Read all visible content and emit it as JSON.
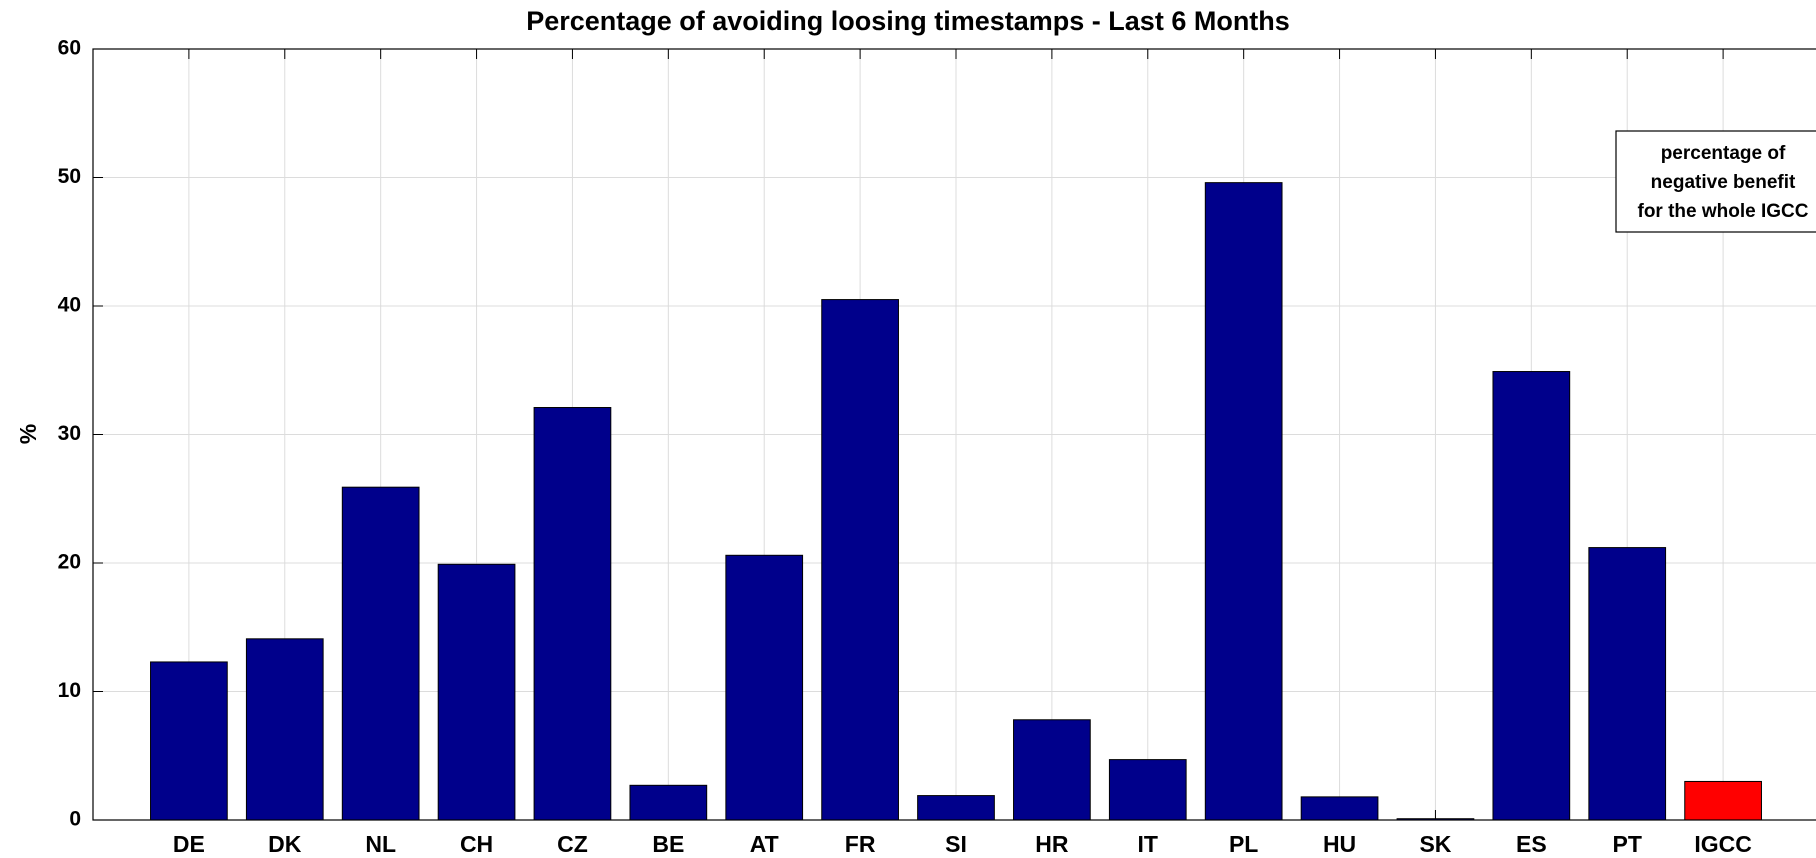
{
  "chart_data": {
    "type": "bar",
    "title": "Percentage of avoiding loosing timestamps - Last 6 Months",
    "ylabel": "%",
    "categories": [
      "DE",
      "DK",
      "NL",
      "CH",
      "CZ",
      "BE",
      "AT",
      "FR",
      "SI",
      "HR",
      "IT",
      "PL",
      "HU",
      "SK",
      "ES",
      "PT",
      "IGCC"
    ],
    "values": [
      12.3,
      14.1,
      25.9,
      19.9,
      32.1,
      2.7,
      20.6,
      40.5,
      1.9,
      7.8,
      4.7,
      49.6,
      1.8,
      0.1,
      34.9,
      21.2,
      3.0
    ],
    "colors": [
      "#00008b",
      "#00008b",
      "#00008b",
      "#00008b",
      "#00008b",
      "#00008b",
      "#00008b",
      "#00008b",
      "#00008b",
      "#00008b",
      "#00008b",
      "#00008b",
      "#00008b",
      "#00008b",
      "#00008b",
      "#00008b",
      "#ff0000"
    ],
    "ylim": [
      0,
      60
    ],
    "yticks": [
      0,
      10,
      20,
      30,
      40,
      50,
      60
    ],
    "grid": true,
    "annotation": [
      "percentage of",
      "negative benefit",
      "for the whole IGCC"
    ]
  }
}
